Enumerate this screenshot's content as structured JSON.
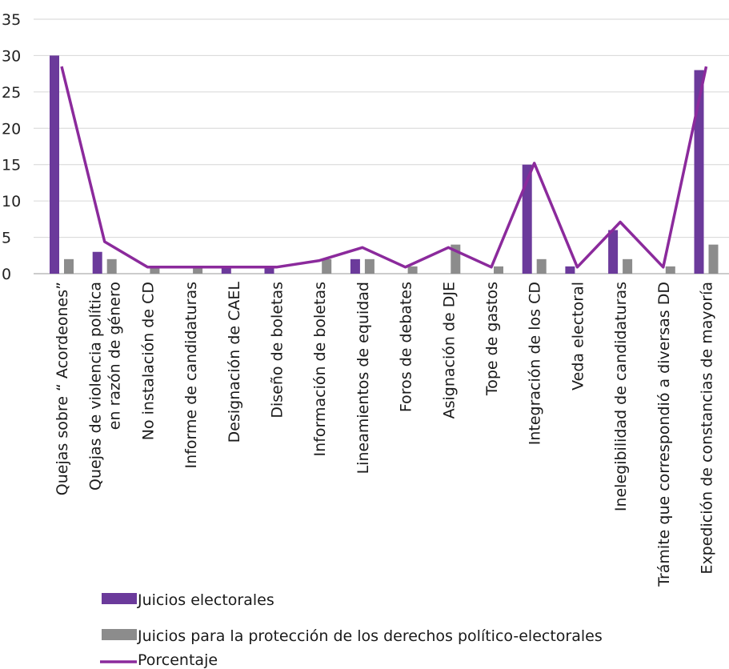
{
  "chart_data": {
    "type": "bar",
    "categories": [
      [
        "Quejas sobre “ Acordeones”"
      ],
      [
        "Quejas de violencia política",
        "en razón de género"
      ],
      [
        "No instalación de CD"
      ],
      [
        "Informe de  candidaturas"
      ],
      [
        "Designación de CAEL"
      ],
      [
        "Diseño de boletas"
      ],
      [
        "Información de boletas"
      ],
      [
        "Lineamientos de equidad"
      ],
      [
        "Foros de debates"
      ],
      [
        "Asignación de DJE"
      ],
      [
        "Tope de gastos"
      ],
      [
        "Integración de los CD"
      ],
      [
        "Veda electoral"
      ],
      [
        "Inelegibilidad de candidaturas"
      ],
      [
        "Trámite que correspondió a diversas DD"
      ],
      [
        "Expedición de constancias de mayoría"
      ]
    ],
    "series": [
      {
        "name": "Juicios electorales",
        "type": "bar",
        "color": "#6b3a9b",
        "values": [
          30,
          3,
          0,
          0,
          1,
          1,
          0,
          2,
          0,
          0,
          0,
          15,
          1,
          6,
          0,
          28
        ]
      },
      {
        "name": "Juicios para la protección de los derechos político-electorales",
        "type": "bar",
        "color": "#8c8c8c",
        "values": [
          2,
          2,
          1,
          1,
          0,
          0,
          2,
          2,
          1,
          4,
          1,
          2,
          0,
          2,
          1,
          4
        ]
      },
      {
        "name": "Porcentaje",
        "type": "line",
        "color": "#8b2a9c",
        "values": [
          28.5,
          4.4,
          0.9,
          0.9,
          0.9,
          0.9,
          1.8,
          3.6,
          0.9,
          3.6,
          0.9,
          15.2,
          0.9,
          7.1,
          0.9,
          28.5
        ]
      }
    ],
    "yticks": [
      0,
      5,
      10,
      15,
      20,
      25,
      30,
      35
    ],
    "ylim": [
      0,
      35
    ],
    "grid": true,
    "legend_position": "bottom"
  }
}
